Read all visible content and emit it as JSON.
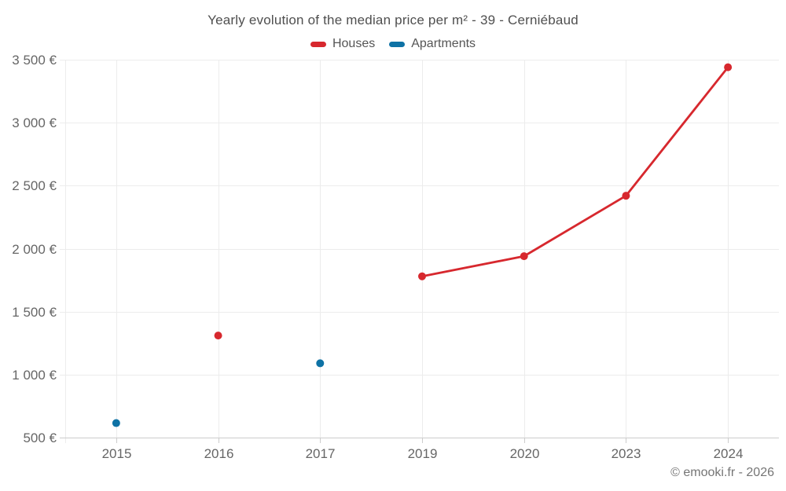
{
  "footer": {
    "copyright": "© emooki.fr - 2026"
  },
  "style": {
    "grid_color": "#ececec",
    "axis_color": "#cccccc",
    "tick_label_color": "#666666",
    "title_color": "#4f4f4f",
    "legend_text_color": "#555555",
    "house_color": "#d7282e",
    "apartment_color": "#0e72a5"
  },
  "chart_data": {
    "type": "line",
    "title": "Yearly evolution of the median price per m² - 39 - Cerniébaud",
    "categories": [
      "2015",
      "2016",
      "2017",
      "2019",
      "2020",
      "2023",
      "2024"
    ],
    "series": [
      {
        "name": "Houses",
        "color": "#d7282e",
        "values": [
          null,
          1310,
          null,
          1780,
          1940,
          2420,
          3440
        ]
      },
      {
        "name": "Apartments",
        "color": "#0e72a5",
        "values": [
          615,
          null,
          1090,
          null,
          null,
          null,
          null
        ]
      }
    ],
    "y_ticks": [
      {
        "value": 500,
        "label": "500 €"
      },
      {
        "value": 1000,
        "label": "1 000 €"
      },
      {
        "value": 1500,
        "label": "1 500 €"
      },
      {
        "value": 2000,
        "label": "2 000 €"
      },
      {
        "value": 2500,
        "label": "2 500 €"
      },
      {
        "value": 3000,
        "label": "3 000 €"
      },
      {
        "value": 3500,
        "label": "3 500 €"
      }
    ],
    "ylim": [
      500,
      3500
    ],
    "grid": true,
    "legend_position": "top",
    "xlabel": "",
    "ylabel": "",
    "marker_radius": 5,
    "line_width": 2.8
  }
}
